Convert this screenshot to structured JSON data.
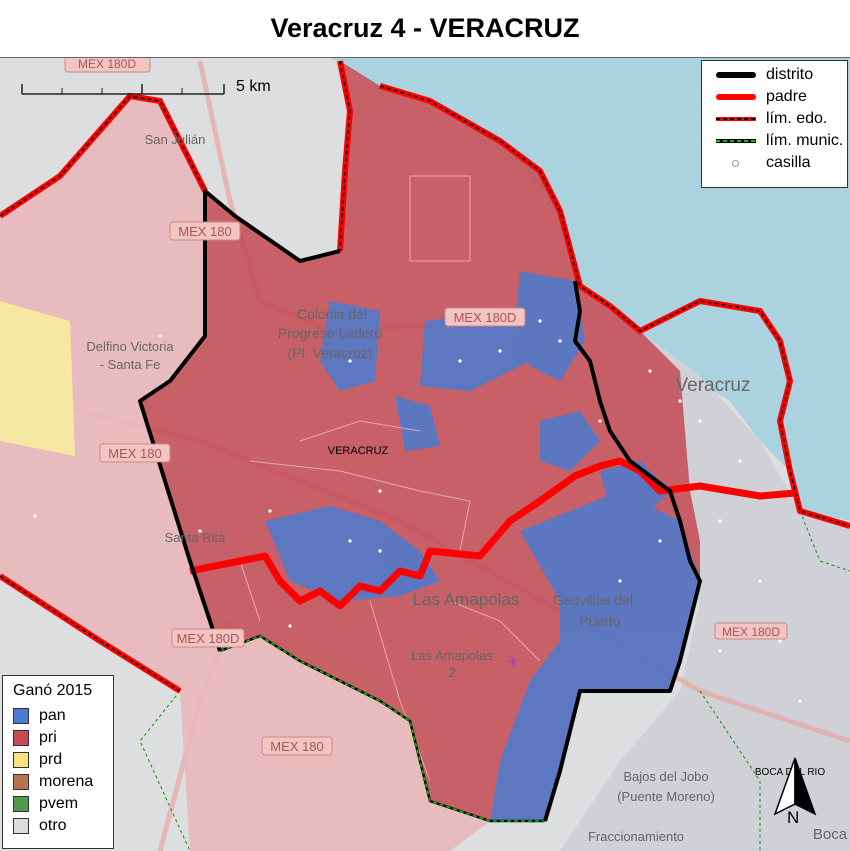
{
  "title": "Veracruz 4 - VERACRUZ",
  "scale": {
    "label": "5 km"
  },
  "legend": {
    "items": [
      {
        "label": "distrito",
        "color": "#000000"
      },
      {
        "label": "padre",
        "color": "#ff0000"
      },
      {
        "label": "lím. edo.",
        "color": "#ff0000",
        "dash": "#000000"
      },
      {
        "label": "lím. munic.",
        "color": "#000000",
        "dash": "#00cc00"
      },
      {
        "label": "casilla",
        "color": "#ffffff"
      }
    ]
  },
  "winner_legend": {
    "title": "Ganó 2015",
    "items": [
      {
        "label": "pan",
        "color": "#4a7bd0"
      },
      {
        "label": "pri",
        "color": "#c44a54"
      },
      {
        "label": "prd",
        "color": "#f7e282"
      },
      {
        "label": "morena",
        "color": "#b8734e"
      },
      {
        "label": "pvem",
        "color": "#4f9a4a"
      },
      {
        "label": "otro",
        "color": "#dcdcdc"
      }
    ]
  },
  "north": {
    "label": "N"
  },
  "map_labels": {
    "municipio": "VERACRUZ",
    "las_amapolas": "Las Amapolas",
    "las_amapolas_2a": "Las Amapolas",
    "las_amapolas_2b": "2",
    "geovillas": "Geovillas del",
    "puerto": "Puerto",
    "colonia1": "Colonia del",
    "colonia2": "Progreso Ladero",
    "colonia3": "(Pl. Veracruz)",
    "delfino1": "Delfino Victoria",
    "delfino2": "- Santa Fe",
    "santa_rita": "Santa Rita",
    "san_julian": "San Julián",
    "veracruz_city": "Veracruz",
    "boca_del_rio": "BOCA DEL RIO",
    "bajos1": "Bajos del Jobo",
    "bajos2": "(Puente Moreno)",
    "fracc": "Fraccionamiento",
    "boca": "Boca",
    "mex180d_top": "MEX 180D",
    "mex180_a": "MEX 180",
    "mex180d_mid": "MEX 180D",
    "mex180_b": "MEX 180",
    "mex180d_low": "MEX 180D",
    "mex180_c": "MEX 180",
    "mex180d_right": "MEX 180D"
  }
}
